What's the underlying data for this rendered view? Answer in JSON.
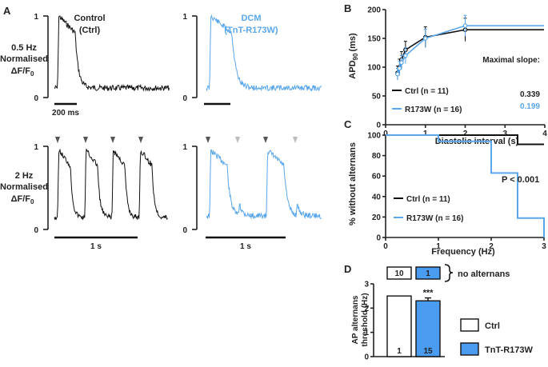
{
  "colors": {
    "ctrl": "#111111",
    "dcm": "#5aa7ec",
    "ctrl_arrow": "#555555",
    "dcm_arrow_light": "#bbbbbb",
    "bar_fill": "#4a9cf0"
  },
  "panel_a": {
    "letter": "A",
    "titles": {
      "ctrl": "Control",
      "ctrl_sub": "(Ctrl)",
      "dcm": "DCM",
      "dcm_sub": "(TnT-R173W)"
    },
    "row1": {
      "freq": "0.5 Hz",
      "norm": "Normalised",
      "ylabel": "ΔF/F",
      "ylabel_sub": "0",
      "ticks": [
        "0",
        "1"
      ],
      "scale": "200 ms"
    },
    "row2": {
      "freq": "2 Hz",
      "norm": "Normalised",
      "ylabel": "ΔF/F",
      "ylabel_sub": "0",
      "ticks": [
        "0",
        "1"
      ],
      "scale": "1 s",
      "scale_dcm": "1 s"
    }
  },
  "chart_data": [
    {
      "panel": "B",
      "type": "line",
      "xlabel": "Diastolic interval (s)",
      "ylabel": "APD",
      "ylabel_sub": "90",
      "ylabel_unit": "(ms)",
      "xlim": [
        0,
        4
      ],
      "ylim": [
        0,
        200
      ],
      "xticks": [
        "0",
        "1",
        "2",
        "3",
        "4"
      ],
      "yticks": [
        "0",
        "50",
        "100",
        "150",
        "200"
      ],
      "legend": [
        "Ctrl (n = 11)",
        "R173W (n = 16)"
      ],
      "annotation_title": "Maximal slope:",
      "slopes": [
        "0.339",
        "0.199"
      ],
      "series": [
        {
          "name": "Ctrl (n = 11)",
          "x": [
            0.3,
            0.35,
            0.4,
            0.5,
            1.0,
            2.0
          ],
          "y": [
            90,
            100,
            113,
            130,
            152,
            165
          ],
          "err": [
            12,
            14,
            14,
            15,
            18,
            20
          ]
        },
        {
          "name": "R173W (n = 16)",
          "x": [
            0.3,
            0.35,
            0.4,
            0.5,
            1.0,
            2.0
          ],
          "y": [
            88,
            98,
            108,
            120,
            150,
            172
          ],
          "err": [
            10,
            12,
            12,
            14,
            16,
            18
          ]
        }
      ]
    },
    {
      "panel": "C",
      "type": "line",
      "xlabel": "Frequency (Hz)",
      "ylabel": "% without alternans",
      "xlim": [
        0,
        3
      ],
      "ylim": [
        0,
        100
      ],
      "xticks": [
        "0",
        "1",
        "2",
        "3"
      ],
      "yticks": [
        "0",
        "20",
        "40",
        "60",
        "80",
        "100"
      ],
      "legend": [
        "Ctrl (n = 11)",
        "R173W (n = 16)"
      ],
      "annotation": "P < 0.001",
      "series": [
        {
          "name": "Ctrl (n = 11)",
          "x": [
            0,
            2.5,
            2.5,
            3
          ],
          "y": [
            100,
            100,
            91,
            91
          ]
        },
        {
          "name": "R173W (n = 16)",
          "x": [
            0,
            1,
            1,
            2,
            2,
            2.5,
            2.5,
            3,
            3
          ],
          "y": [
            100,
            100,
            94,
            94,
            63,
            63,
            19,
            19,
            0
          ]
        }
      ]
    },
    {
      "panel": "D",
      "type": "bar",
      "ylabel_line1": "AP alternans",
      "ylabel_line2": "threshold (Hz)",
      "ylim": [
        0,
        3
      ],
      "yticks": [
        "0",
        "1",
        "2",
        "3"
      ],
      "categories": [
        "Ctrl",
        "TnT-R173W"
      ],
      "values": [
        2.5,
        2.3
      ],
      "errors": [
        0,
        0.12
      ],
      "n_labels": [
        "1",
        "15"
      ],
      "no_alternans_counts": [
        "10",
        "1"
      ],
      "no_alternans_label": "no alternans",
      "significance": "***",
      "legend": [
        "Ctrl",
        "TnT-R173W"
      ]
    }
  ]
}
